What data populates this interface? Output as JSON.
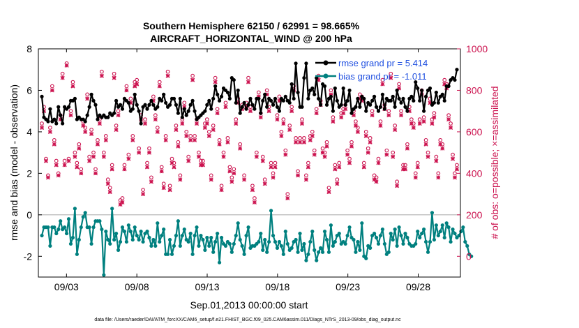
{
  "chart_data": {
    "type": "line",
    "title_line1": "Southern Hemisphere 62150 / 62991 = 98.665%",
    "title_line2": "AIRCRAFT_HORIZONTAL_WIND @ 200 hPa",
    "xlabel": "Sep.01,2013 00:00:00 start",
    "ylabel_left": "rmse and bias (model - observation)",
    "ylabel_right": "# of obs: o=possible; ×=assimilated",
    "footnote": "data file: /Users/raeder/DAI/ATM_forcXX/CAM6_setup/f.e21.FHIST_BGC.f09_025.CAM6assim.011/Diags_NTrS_2013-09/obs_diag_output.nc",
    "x_ticks": [
      {
        "day": 3,
        "label": "09/03"
      },
      {
        "day": 8,
        "label": "09/08"
      },
      {
        "day": 13,
        "label": "09/13"
      },
      {
        "day": 18,
        "label": "09/18"
      },
      {
        "day": 23,
        "label": "09/23"
      },
      {
        "day": 28,
        "label": "09/28"
      }
    ],
    "xlim_days": [
      1.0,
      31.0
    ],
    "ylim_left": [
      -3,
      8
    ],
    "yticks_left": [
      "-2",
      "0",
      "2",
      "4",
      "6",
      "8"
    ],
    "ylim_right": [
      -100,
      1000
    ],
    "yticks_right": [
      "0",
      "200",
      "400",
      "600",
      "800",
      "1000"
    ],
    "grid": false,
    "zero_line": true,
    "legend": {
      "placement": "top-right",
      "rmse_label": "rmse grand pr = 5.414",
      "bias_label": "bias grand pr = -1.011"
    },
    "colors": {
      "rmse": "#000000",
      "bias": "#00807f",
      "obs": "#cc1450",
      "legend_text": "#1f4fe0",
      "axis": "#000000",
      "zero_line": "#b0b0b0"
    },
    "series": {
      "rmse": [
        5.7,
        4.7,
        4.6,
        4.5,
        5.1,
        4.5,
        4.6,
        4.4,
        5.2,
        4.8,
        4.4,
        5.2,
        5.1,
        5.2,
        5.5,
        5.5,
        5.6,
        4.6,
        4.7,
        4.6,
        4.6,
        4.5,
        4.8,
        5.2,
        5.8,
        5.5,
        5.3,
        4.6,
        4.8,
        4.7,
        4.8,
        4.7,
        4.7,
        4.9,
        4.8,
        4.9,
        5.5,
        5.2,
        5.3,
        5.1,
        5.6,
        5.5,
        5.4,
        5.0,
        5.1,
        5.8,
        5.3,
        5.0,
        4.4,
        5.2,
        5.3,
        5.1,
        5.3,
        5.5,
        5.3,
        5.1,
        5.2,
        5.6,
        5.5,
        5.8,
        5.4,
        5.2,
        5.3,
        5.6,
        5.6,
        5.3,
        4.9,
        5.6,
        4.7,
        5.1,
        4.8,
        5.0,
        5.3,
        5.5,
        5.0,
        4.6,
        4.7,
        4.8,
        4.9,
        5.0,
        5.3,
        5.5,
        5.1,
        5.6,
        6.2,
        5.8,
        5.5,
        5.7,
        6.1,
        6.0,
        5.9,
        5.6,
        6.6,
        6.5,
        5.4,
        6.0,
        4.9,
        5.2,
        5.4,
        5.1,
        5.3,
        5.6,
        5.3,
        5.1,
        5.6,
        5.6,
        4.9,
        5.5,
        5.8,
        5.2,
        5.6,
        5.5,
        5.3,
        5.6,
        5.2,
        5.0,
        5.6,
        5.5,
        5.7,
        5.5,
        5.4,
        6.3,
        5.6,
        7.3,
        5.9,
        5.2,
        5.2,
        6.6,
        7.3,
        5.6,
        6.0,
        6.1,
        5.8,
        6.6,
        5.6,
        5.3,
        6.3,
        6.2,
        5.3,
        5.6,
        5.7,
        5.0,
        6.1,
        5.5,
        5.2,
        5.3,
        6.1,
        5.3,
        5.5,
        6.0,
        4.9,
        5.1,
        5.2,
        5.6,
        5.2,
        5.7,
        5.6,
        5.0,
        5.4,
        5.3,
        5.5,
        5.7,
        5.2,
        5.0,
        5.2,
        5.8,
        5.1,
        5.6,
        5.5,
        5.5,
        5.7,
        5.2,
        6.0,
        5.6,
        5.4,
        5.6,
        5.2,
        5.0,
        5.6,
        5.7,
        5.5,
        6.4,
        6.1,
        5.5,
        6.0,
        5.0,
        5.7,
        6.0,
        6.1,
        5.3,
        5.4,
        5.9,
        5.4,
        5.7,
        5.8,
        5.5,
        6.2,
        6.2,
        6.5,
        6.6,
        6.5,
        7.0
      ],
      "bias": [
        -1.0,
        -0.6,
        -0.6,
        -0.6,
        -1.5,
        -0.6,
        -0.6,
        -0.9,
        -0.7,
        -0.3,
        -0.7,
        -0.6,
        -0.9,
        -0.2,
        -1.4,
        -1.1,
        0.3,
        -1.9,
        -1.2,
        -0.6,
        -0.1,
        0.1,
        -0.6,
        -0.6,
        -1.4,
        -0.6,
        -0.3,
        -0.3,
        -0.3,
        -0.7,
        -2.9,
        -0.8,
        -1.2,
        -1.4,
        0.3,
        -1.2,
        -0.9,
        -1.7,
        -1.3,
        -0.6,
        -0.8,
        -1.3,
        -0.5,
        -0.8,
        -1.2,
        -0.6,
        -1.0,
        -1.2,
        -0.8,
        -1.3,
        -0.9,
        -0.8,
        -1.1,
        -1.5,
        -1.2,
        -1.5,
        -0.4,
        -1.3,
        -1.0,
        -0.7,
        -1.9,
        -1.9,
        -1.2,
        -1.9,
        -1.5,
        -1.0,
        -0.3,
        -1.5,
        -1.0,
        -0.7,
        -1.2,
        -1.3,
        -0.9,
        -1.9,
        -1.0,
        -0.6,
        -1.5,
        -1.0,
        -1.2,
        -1.7,
        -1.1,
        -1.5,
        -1.1,
        -1.8,
        -1.3,
        -0.9,
        -2.3,
        -1.1,
        -1.4,
        -1.5,
        -1.3,
        -1.4,
        -1.8,
        -1.4,
        -1.0,
        -0.4,
        -1.2,
        -1.5,
        -1.9,
        -1.0,
        -0.6,
        -1.6,
        -1.5,
        -1.5,
        -1.4,
        -1.3,
        -0.9,
        -1.7,
        -1.2,
        -1.8,
        -1.3,
        0.2,
        -1.0,
        -1.3,
        -1.6,
        -1.3,
        -1.5,
        -1.9,
        -0.8,
        -1.4,
        -1.7,
        -1.6,
        -1.3,
        -1.2,
        -1.8,
        -0.9,
        -1.7,
        -1.4,
        -2.2,
        -1.9,
        -1.3,
        -0.8,
        -1.7,
        -2.2,
        -1.8,
        -1.6,
        -1.8,
        -0.8,
        -1.2,
        -1.8,
        -0.5,
        -1.5,
        -1.3,
        -1.0,
        -0.9,
        -1.4,
        -1.3,
        -1.4,
        -1.0,
        -0.6,
        -1.1,
        -1.2,
        -1.8,
        -1.3,
        -1.7,
        -0.4,
        -2.0,
        -2.1,
        -1.5,
        -1.6,
        -1.0,
        -0.9,
        -1.1,
        -1.4,
        -1.0,
        -0.7,
        -1.4,
        -1.9,
        -1.8,
        -0.9,
        -1.2,
        -0.7,
        -1.5,
        -0.6,
        -1.0,
        -1.4,
        -0.9,
        -1.1,
        -1.4,
        -1.5,
        -1.5,
        -1.4,
        -0.8,
        -1.1,
        -0.9,
        -0.7,
        -1.3,
        -1.8,
        -1.3,
        0.1,
        -1.2,
        -0.5,
        -1.0,
        -0.8,
        -0.5,
        -1.1,
        -0.4,
        -0.6,
        -1.3,
        -0.7,
        -0.9,
        -1.1,
        -1.0,
        -0.8,
        -0.6,
        -1.3,
        -1.5,
        -1.9,
        -2.0
      ],
      "obs_assimilated": [
        620,
        700,
        460,
        380,
        600,
        800,
        540,
        440,
        390,
        660,
        860,
        440,
        920,
        460,
        680,
        820,
        480,
        430,
        520,
        400,
        630,
        600,
        760,
        460,
        590,
        480,
        400,
        540,
        640,
        870,
        480,
        560,
        350,
        310,
        420,
        860,
        610,
        680,
        250,
        260,
        420,
        800,
        470,
        740,
        560,
        820,
        830,
        500,
        660,
        300,
        640,
        430,
        500,
        360,
        750,
        660,
        600,
        820,
        410,
        330,
        560,
        870,
        320,
        450,
        430,
        610,
        530,
        370,
        640,
        720,
        580,
        460,
        560,
        850,
        560,
        640,
        480,
        440,
        440,
        620,
        640,
        580,
        370,
        610,
        840,
        690,
        540,
        320,
        480,
        720,
        550,
        410,
        360,
        400,
        640,
        740,
        520,
        710,
        370,
        720,
        840,
        700,
        320,
        260,
        480,
        770,
        670,
        460,
        350,
        780,
        700,
        430,
        380,
        430,
        660,
        750,
        580,
        640,
        490,
        280,
        610,
        700,
        800,
        550,
        390,
        550,
        640,
        550,
        370,
        430,
        560,
        580,
        490,
        690,
        850,
        730,
        500,
        480,
        530,
        310,
        780,
        650,
        420,
        350,
        430,
        670,
        690,
        710,
        490,
        450,
        530,
        680,
        630,
        600,
        760,
        750,
        430,
        580,
        500,
        550,
        680,
        370,
        360,
        450,
        630,
        830,
        710,
        490,
        680,
        860,
        480,
        610,
        340,
        810,
        680,
        420,
        420,
        520,
        700,
        640,
        620,
        380,
        430,
        640,
        780,
        650,
        540,
        480,
        740,
        640,
        670,
        460,
        380,
        540,
        520,
        830,
        810,
        660,
        620,
        470,
        380,
        420,
        540,
        720,
        630,
        460,
        460,
        200,
        590,
        360,
        330
      ],
      "obs_possible": [
        640,
        720,
        470,
        390,
        620,
        820,
        560,
        460,
        400,
        680,
        880,
        460,
        930,
        470,
        700,
        840,
        500,
        450,
        540,
        420,
        650,
        620,
        780,
        480,
        610,
        500,
        420,
        560,
        660,
        890,
        500,
        580,
        370,
        330,
        440,
        880,
        630,
        700,
        270,
        280,
        440,
        820,
        490,
        760,
        580,
        840,
        850,
        520,
        680,
        320,
        660,
        450,
        520,
        380,
        770,
        680,
        620,
        840,
        430,
        350,
        580,
        890,
        340,
        470,
        450,
        630,
        550,
        390,
        660,
        740,
        600,
        480,
        580,
        870,
        580,
        660,
        500,
        460,
        460,
        640,
        660,
        600,
        390,
        630,
        860,
        710,
        560,
        340,
        500,
        740,
        570,
        430,
        380,
        420,
        660,
        760,
        540,
        730,
        390,
        740,
        860,
        720,
        340,
        280,
        500,
        790,
        690,
        480,
        370,
        800,
        720,
        450,
        400,
        450,
        680,
        770,
        600,
        660,
        510,
        300,
        630,
        720,
        820,
        570,
        410,
        570,
        660,
        570,
        390,
        450,
        580,
        600,
        510,
        710,
        870,
        750,
        520,
        500,
        550,
        330,
        800,
        670,
        440,
        370,
        450,
        690,
        710,
        730,
        510,
        470,
        550,
        700,
        650,
        620,
        780,
        770,
        450,
        600,
        520,
        570,
        700,
        390,
        380,
        470,
        650,
        850,
        730,
        510,
        700,
        880,
        500,
        630,
        360,
        830,
        700,
        440,
        440,
        540,
        720,
        660,
        640,
        400,
        450,
        660,
        800,
        670,
        560,
        500,
        760,
        660,
        690,
        480,
        400,
        560,
        540,
        850,
        830,
        680,
        640,
        490,
        400,
        440,
        560,
        740,
        650,
        480,
        480,
        220,
        610,
        380,
        350
      ]
    }
  }
}
